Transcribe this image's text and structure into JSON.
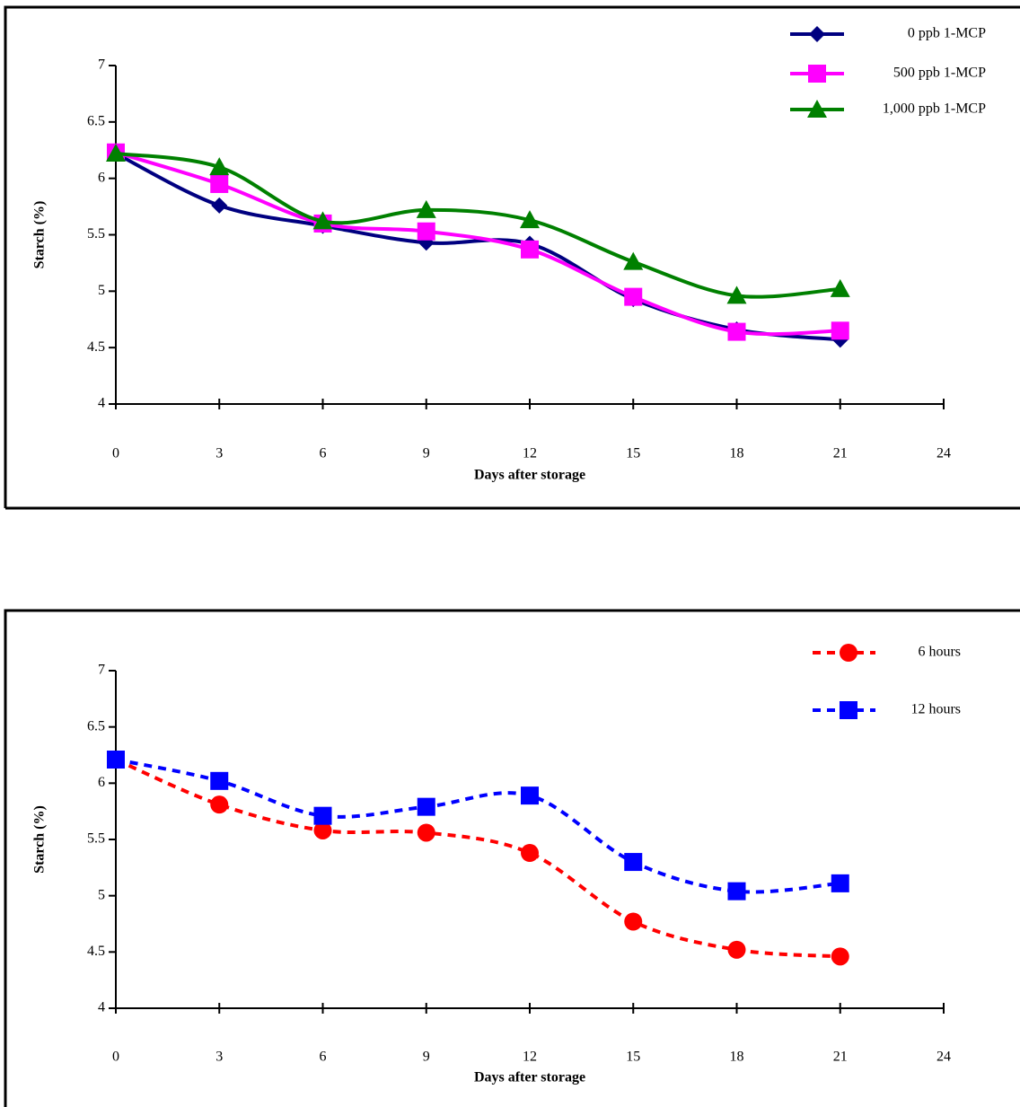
{
  "charts": [
    {
      "chart_data": {
        "type": "line",
        "y_label": "Starch (%)",
        "x_label": "Days after storage",
        "x": [
          0,
          3,
          6,
          9,
          12,
          15,
          18,
          21
        ],
        "xlim": [
          0,
          24
        ],
        "xticks": [
          0,
          3,
          6,
          9,
          12,
          15,
          18,
          21,
          24
        ],
        "ylim": [
          4,
          7
        ],
        "yticks": [
          4,
          4.5,
          5,
          5.5,
          6,
          6.5,
          7
        ],
        "dashed": false,
        "series": [
          {
            "name": "0 ppb 1-MCP",
            "color": "#000080",
            "marker": "diamond",
            "values": [
              6.22,
              5.76,
              5.58,
              5.43,
              5.42,
              4.93,
              4.66,
              4.57
            ]
          },
          {
            "name": "500 ppb 1-MCP",
            "color": "#ff00ff",
            "marker": "square",
            "values": [
              6.23,
              5.95,
              5.6,
              5.53,
              5.37,
              4.95,
              4.64,
              4.65
            ]
          },
          {
            "name": "1,000 ppb 1-MCP",
            "color": "#008000",
            "marker": "triangle",
            "values": [
              6.22,
              6.1,
              5.62,
              5.72,
              5.63,
              5.26,
              4.96,
              5.02
            ]
          }
        ]
      }
    },
    {
      "chart_data": {
        "type": "line",
        "y_label": "Starch (%)",
        "x_label": "Days after storage",
        "x": [
          0,
          3,
          6,
          9,
          12,
          15,
          18,
          21
        ],
        "xlim": [
          0,
          24
        ],
        "xticks": [
          0,
          3,
          6,
          9,
          12,
          15,
          18,
          21,
          24
        ],
        "ylim": [
          4,
          7
        ],
        "yticks": [
          4,
          4.5,
          5,
          5.5,
          6,
          6.5,
          7
        ],
        "dashed": true,
        "series": [
          {
            "name": "6 hours",
            "color": "#ff0000",
            "marker": "circle",
            "values": [
              6.21,
              5.81,
              5.58,
              5.56,
              5.38,
              4.77,
              4.52,
              4.46
            ]
          },
          {
            "name": "12 hours",
            "color": "#0000ff",
            "marker": "square",
            "values": [
              6.21,
              6.02,
              5.71,
              5.79,
              5.89,
              5.3,
              5.04,
              5.11
            ]
          }
        ]
      }
    }
  ]
}
